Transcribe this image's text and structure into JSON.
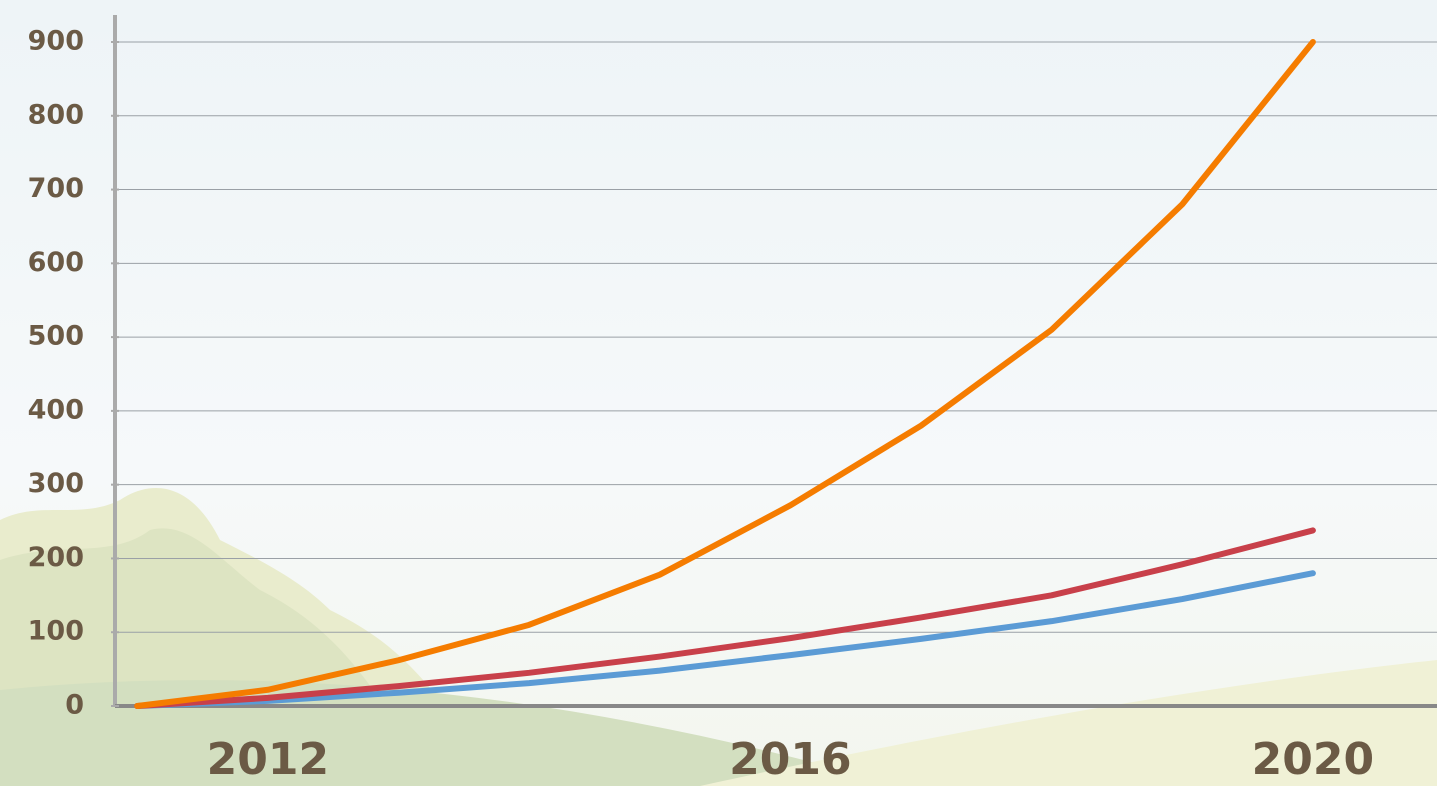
{
  "chart_data": {
    "type": "line",
    "x": [
      2011,
      2012,
      2013,
      2014,
      2015,
      2016,
      2017,
      2018,
      2019,
      2020
    ],
    "series": [
      {
        "color": "#f57c00",
        "values": [
          0,
          22,
          62,
          110,
          178,
          272,
          380,
          510,
          680,
          900
        ]
      },
      {
        "color": "#c8404a",
        "values": [
          0,
          11,
          27,
          45,
          67,
          92,
          120,
          150,
          192,
          238
        ]
      },
      {
        "color": "#5b9bd5",
        "values": [
          0,
          7,
          18,
          31,
          48,
          69,
          91,
          115,
          145,
          180
        ]
      }
    ],
    "xlim": [
      2010.83,
      2020.95
    ],
    "xticks": [
      2012,
      2016,
      2020
    ],
    "ylim": [
      0,
      900
    ],
    "yticks": [
      0,
      100,
      200,
      300,
      400,
      500,
      600,
      700,
      800,
      900
    ],
    "grid": true
  }
}
